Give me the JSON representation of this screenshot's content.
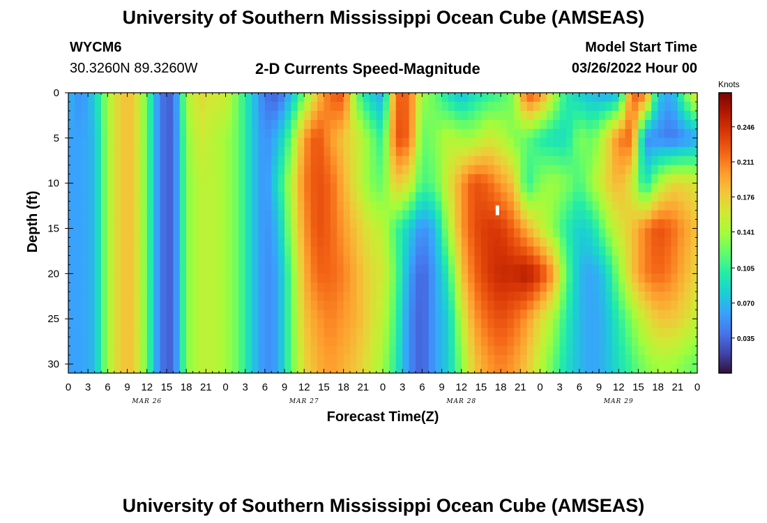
{
  "header": {
    "title": "University of Southern Mississippi Ocean Cube (AMSEAS)",
    "station_id": "WYCM6",
    "coordinates": "30.3260N  89.3260W",
    "chart_subtitle": "2-D Currents Speed-Magnitude",
    "model_start_label": "Model Start Time",
    "model_start_value": "03/26/2022 Hour 00"
  },
  "footer": {
    "title": "University of Southern Mississippi Ocean Cube (AMSEAS)"
  },
  "chart_data": {
    "type": "heatmap",
    "title": "2-D Currents Speed-Magnitude",
    "xlabel": "Forecast Time(Z)",
    "ylabel": "Depth (ft)",
    "x_hours": [
      0,
      96
    ],
    "x_tick_labels": [
      "0",
      "3",
      "6",
      "9",
      "12",
      "15",
      "18",
      "21",
      "0",
      "3",
      "6",
      "9",
      "12",
      "15",
      "18",
      "21",
      "0",
      "3",
      "6",
      "9",
      "12",
      "15",
      "18",
      "21",
      "0",
      "3",
      "6",
      "9",
      "12",
      "15",
      "18",
      "21",
      "0"
    ],
    "date_labels": [
      {
        "label": "MAR 26",
        "hour": 12
      },
      {
        "label": "MAR 27",
        "hour": 36
      },
      {
        "label": "MAR 28",
        "hour": 60
      },
      {
        "label": "MAR 29",
        "hour": 84
      }
    ],
    "ylim": [
      0,
      31
    ],
    "y_ticks": [
      0,
      5,
      10,
      15,
      20,
      25,
      30
    ],
    "y_tick_labels": [
      "0",
      "5",
      "10",
      "15",
      "20",
      "25",
      "30"
    ],
    "colorbar": {
      "unit": "Knots",
      "range": [
        0.0,
        0.28
      ],
      "tick_labels": [
        "0.246",
        "0.211",
        "0.176",
        "0.141",
        "0.105",
        "0.070",
        "0.035"
      ],
      "tick_values": [
        0.246,
        0.211,
        0.176,
        0.141,
        0.105,
        0.07,
        0.035
      ],
      "colors": [
        "#30123b",
        "#4145ab",
        "#4675ed",
        "#39a2fc",
        "#1bcfd4",
        "#24eca6",
        "#61fc6c",
        "#a4fc3b",
        "#d1e834",
        "#f3c63a",
        "#fe9b2d",
        "#f36315",
        "#d93806",
        "#b11901",
        "#7a0402"
      ]
    },
    "marker": {
      "hour": 65.5,
      "depth": 13
    },
    "grid": {
      "time_hours": [
        0,
        2,
        4,
        6,
        8,
        10,
        12,
        14,
        16,
        18,
        20,
        22,
        24,
        26,
        28,
        30,
        32,
        34,
        36,
        38,
        40,
        42,
        44,
        46,
        48,
        50,
        52,
        54,
        56,
        58,
        60,
        62,
        64,
        66,
        68,
        70,
        72,
        74,
        76,
        78,
        80,
        82,
        84,
        86,
        88,
        90,
        92,
        94,
        96
      ],
      "depths_ft": [
        0,
        5,
        10,
        15,
        20,
        25,
        30
      ],
      "speed_knots": [
        [
          0.07,
          0.05,
          0.08,
          0.14,
          0.18,
          0.18,
          0.12,
          0.04,
          0.03,
          0.14,
          0.17,
          0.16,
          0.16,
          0.12,
          0.08,
          0.04,
          0.03,
          0.07,
          0.12,
          0.18,
          0.22,
          0.23,
          0.12,
          0.08,
          0.06,
          0.22,
          0.22,
          0.14,
          0.12,
          0.09,
          0.07,
          0.09,
          0.1,
          0.11,
          0.13,
          0.23,
          0.21,
          0.15,
          0.1,
          0.08,
          0.07,
          0.06,
          0.07,
          0.22,
          0.22,
          0.08,
          0.06,
          0.12,
          0.18
        ],
        [
          0.06,
          0.06,
          0.07,
          0.14,
          0.18,
          0.18,
          0.12,
          0.04,
          0.03,
          0.13,
          0.16,
          0.15,
          0.14,
          0.12,
          0.08,
          0.05,
          0.07,
          0.12,
          0.2,
          0.23,
          0.2,
          0.18,
          0.16,
          0.13,
          0.1,
          0.23,
          0.22,
          0.12,
          0.13,
          0.15,
          0.14,
          0.14,
          0.16,
          0.15,
          0.13,
          0.12,
          0.1,
          0.09,
          0.09,
          0.13,
          0.12,
          0.16,
          0.21,
          0.22,
          0.05,
          0.05,
          0.04,
          0.05,
          0.06
        ],
        [
          0.06,
          0.06,
          0.07,
          0.14,
          0.18,
          0.18,
          0.12,
          0.04,
          0.03,
          0.13,
          0.15,
          0.15,
          0.14,
          0.12,
          0.08,
          0.05,
          0.09,
          0.15,
          0.21,
          0.23,
          0.22,
          0.19,
          0.16,
          0.13,
          0.12,
          0.18,
          0.16,
          0.11,
          0.12,
          0.16,
          0.2,
          0.23,
          0.22,
          0.2,
          0.18,
          0.1,
          0.13,
          0.14,
          0.13,
          0.11,
          0.14,
          0.17,
          0.19,
          0.16,
          0.09,
          0.14,
          0.17,
          0.17,
          0.16
        ],
        [
          0.06,
          0.06,
          0.07,
          0.14,
          0.18,
          0.18,
          0.12,
          0.04,
          0.03,
          0.13,
          0.15,
          0.15,
          0.14,
          0.12,
          0.08,
          0.05,
          0.07,
          0.14,
          0.2,
          0.23,
          0.22,
          0.2,
          0.18,
          0.16,
          0.15,
          0.11,
          0.08,
          0.05,
          0.07,
          0.14,
          0.2,
          0.23,
          0.24,
          0.24,
          0.22,
          0.19,
          0.16,
          0.13,
          0.1,
          0.08,
          0.09,
          0.13,
          0.16,
          0.18,
          0.21,
          0.23,
          0.22,
          0.2,
          0.18
        ],
        [
          0.06,
          0.06,
          0.07,
          0.14,
          0.18,
          0.18,
          0.12,
          0.04,
          0.03,
          0.13,
          0.15,
          0.15,
          0.14,
          0.12,
          0.08,
          0.05,
          0.06,
          0.12,
          0.19,
          0.22,
          0.22,
          0.21,
          0.19,
          0.17,
          0.16,
          0.12,
          0.06,
          0.03,
          0.06,
          0.1,
          0.18,
          0.22,
          0.24,
          0.25,
          0.25,
          0.26,
          0.24,
          0.2,
          0.12,
          0.07,
          0.06,
          0.08,
          0.13,
          0.18,
          0.21,
          0.22,
          0.21,
          0.19,
          0.17
        ],
        [
          0.06,
          0.06,
          0.07,
          0.14,
          0.18,
          0.18,
          0.12,
          0.04,
          0.03,
          0.13,
          0.15,
          0.15,
          0.14,
          0.12,
          0.08,
          0.05,
          0.06,
          0.12,
          0.18,
          0.2,
          0.21,
          0.2,
          0.19,
          0.17,
          0.15,
          0.11,
          0.05,
          0.03,
          0.06,
          0.08,
          0.15,
          0.2,
          0.22,
          0.23,
          0.22,
          0.2,
          0.17,
          0.14,
          0.1,
          0.07,
          0.06,
          0.07,
          0.1,
          0.13,
          0.16,
          0.18,
          0.18,
          0.17,
          0.15
        ],
        [
          0.06,
          0.06,
          0.07,
          0.14,
          0.18,
          0.18,
          0.12,
          0.04,
          0.03,
          0.13,
          0.15,
          0.15,
          0.14,
          0.12,
          0.08,
          0.05,
          0.06,
          0.12,
          0.17,
          0.19,
          0.2,
          0.19,
          0.18,
          0.16,
          0.14,
          0.1,
          0.05,
          0.03,
          0.06,
          0.08,
          0.13,
          0.18,
          0.2,
          0.21,
          0.2,
          0.18,
          0.15,
          0.12,
          0.09,
          0.07,
          0.06,
          0.07,
          0.09,
          0.11,
          0.13,
          0.14,
          0.14,
          0.13,
          0.12
        ]
      ]
    }
  }
}
